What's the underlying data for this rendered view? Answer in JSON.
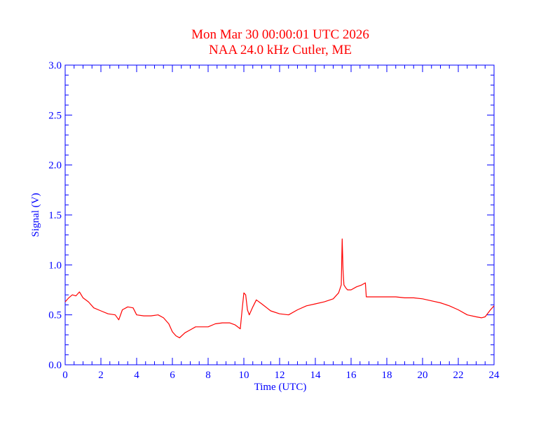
{
  "chart_data": {
    "type": "line",
    "title": "Mon Mar 30 00:00:01 UTC 2026",
    "subtitle": "NAA 24.0 kHz Cutler, ME",
    "xlabel": "Time (UTC)",
    "ylabel": "Signal (V)",
    "xlim": [
      0,
      24
    ],
    "ylim": [
      0,
      3
    ],
    "x_ticks": [
      "0",
      "2",
      "4",
      "6",
      "8",
      "10",
      "12",
      "14",
      "16",
      "18",
      "20",
      "22",
      "24"
    ],
    "y_ticks": [
      "0.0",
      "0.5",
      "1.0",
      "1.5",
      "2.0",
      "2.5",
      "3.0"
    ],
    "grid": false,
    "colors": {
      "axes": "#0000ff",
      "series": "#ff0000",
      "title": "#ff0000"
    },
    "series": [
      {
        "x": [
          0,
          0.2,
          0.4,
          0.6,
          0.8,
          1.0,
          1.3,
          1.6,
          2.0,
          2.4,
          2.8,
          3.0,
          3.2,
          3.5,
          3.8,
          4.0,
          4.4,
          4.8,
          5.2,
          5.5,
          5.8,
          6.0,
          6.2,
          6.4,
          6.7,
          7.0,
          7.3,
          7.6,
          8.0,
          8.4,
          8.8,
          9.2,
          9.5,
          9.8,
          9.9,
          10.0,
          10.1,
          10.2,
          10.3,
          10.5,
          10.7,
          11.0,
          11.5,
          12.0,
          12.5,
          13.0,
          13.5,
          14.0,
          14.5,
          15.0,
          15.3,
          15.45,
          15.5,
          15.55,
          15.6,
          15.7,
          15.8,
          16.0,
          16.3,
          16.6,
          16.8,
          16.85,
          17.0,
          17.5,
          18.0,
          18.5,
          19.0,
          19.5,
          20.0,
          20.5,
          21.0,
          21.5,
          22.0,
          22.5,
          23.0,
          23.3,
          23.5,
          23.8,
          24.0
        ],
        "y": [
          0.63,
          0.67,
          0.7,
          0.69,
          0.73,
          0.67,
          0.63,
          0.57,
          0.54,
          0.51,
          0.5,
          0.45,
          0.55,
          0.58,
          0.57,
          0.5,
          0.49,
          0.49,
          0.5,
          0.47,
          0.41,
          0.33,
          0.29,
          0.27,
          0.32,
          0.35,
          0.38,
          0.38,
          0.38,
          0.41,
          0.42,
          0.42,
          0.4,
          0.36,
          0.55,
          0.72,
          0.7,
          0.55,
          0.5,
          0.58,
          0.65,
          0.61,
          0.54,
          0.51,
          0.5,
          0.55,
          0.59,
          0.61,
          0.63,
          0.66,
          0.72,
          0.8,
          1.26,
          0.95,
          0.8,
          0.77,
          0.75,
          0.75,
          0.78,
          0.8,
          0.82,
          0.68,
          0.68,
          0.68,
          0.68,
          0.68,
          0.67,
          0.67,
          0.66,
          0.64,
          0.62,
          0.59,
          0.55,
          0.5,
          0.48,
          0.47,
          0.48,
          0.55,
          0.59
        ]
      }
    ]
  }
}
